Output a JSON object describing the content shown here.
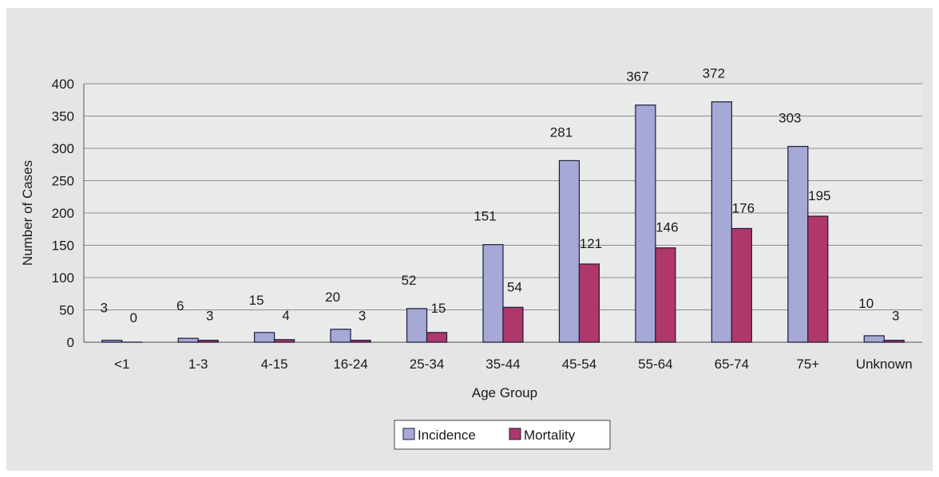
{
  "chart_data": {
    "type": "bar",
    "categories": [
      "<1",
      "1-3",
      "4-15",
      "16-24",
      "25-34",
      "35-44",
      "45-54",
      "55-64",
      "65-74",
      "75+",
      "Unknown"
    ],
    "series": [
      {
        "name": "Incidence",
        "values": [
          3,
          6,
          15,
          20,
          52,
          151,
          281,
          367,
          372,
          303,
          10
        ],
        "color": "#a6a8d6"
      },
      {
        "name": "Mortality",
        "values": [
          0,
          3,
          4,
          3,
          15,
          54,
          121,
          146,
          176,
          195,
          3
        ],
        "color": "#b0376a"
      }
    ],
    "xlabel": "Age Group",
    "ylabel": "Number of Cases",
    "ylim": [
      0,
      400
    ],
    "yticks": [
      0,
      50,
      100,
      150,
      200,
      250,
      300,
      350,
      400
    ],
    "grid": true,
    "legend_position": "bottom",
    "colors": {
      "plot_background": "#e9eaea",
      "frame_background": "#e4e5e5",
      "gridline": "#8c8c8c",
      "bar_outline": "#1c1c3c"
    }
  }
}
